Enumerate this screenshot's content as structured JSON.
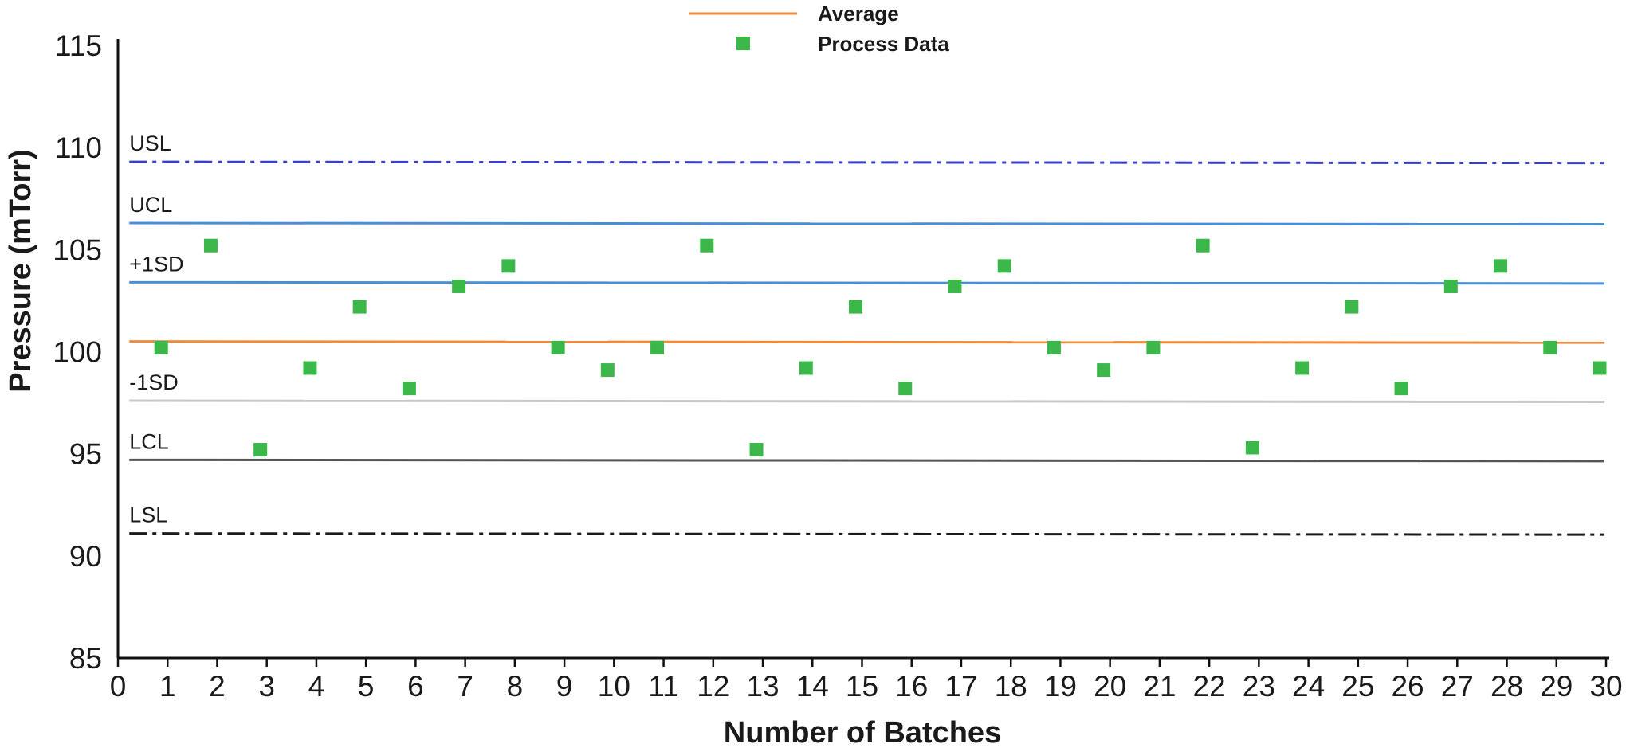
{
  "chart_data": {
    "type": "scatter",
    "title": "",
    "xlabel": "Number of Batches",
    "ylabel": "Pressure (mTorr)",
    "xlim": [
      0,
      30
    ],
    "ylim": [
      85,
      115
    ],
    "xticks": [
      0,
      1,
      2,
      3,
      4,
      5,
      6,
      7,
      8,
      9,
      10,
      11,
      12,
      13,
      14,
      15,
      16,
      17,
      18,
      19,
      20,
      21,
      22,
      23,
      24,
      25,
      26,
      27,
      28,
      29,
      30
    ],
    "yticks": [
      85,
      90,
      95,
      100,
      105,
      110,
      115
    ],
    "grid": false,
    "legend": {
      "position": "top-center",
      "entries": [
        {
          "label": "Average",
          "marker": "line",
          "color": "#f08a3c"
        },
        {
          "label": "Process Data",
          "marker": "square",
          "color": "#3cb84a"
        }
      ]
    },
    "series": [
      {
        "name": "Process Data",
        "color": "#3cb84a",
        "x": [
          1,
          2,
          3,
          4,
          5,
          6,
          7,
          8,
          9,
          10,
          11,
          12,
          13,
          14,
          15,
          16,
          17,
          18,
          19,
          20,
          21,
          22,
          23,
          24,
          25,
          26,
          27,
          28,
          29,
          30
        ],
        "y": [
          100.2,
          105.2,
          95.2,
          99.2,
          102.2,
          98.2,
          103.2,
          104.2,
          100.2,
          99.1,
          100.2,
          105.2,
          95.2,
          99.2,
          102.2,
          98.2,
          103.2,
          104.2,
          100.2,
          99.1,
          100.2,
          105.2,
          95.3,
          99.2,
          102.2,
          98.2,
          103.2,
          104.2,
          100.2,
          99.2
        ]
      }
    ],
    "reference_lines": [
      {
        "label": "USL",
        "value": 109.3,
        "color": "#3a3fc4",
        "style": "dashdot"
      },
      {
        "label": "UCL",
        "value": 106.3,
        "color": "#4a8fd4",
        "style": "solid"
      },
      {
        "label": "+1SD",
        "value": 103.4,
        "color": "#4a8fd4",
        "style": "solid"
      },
      {
        "label": "",
        "value": 100.5,
        "color": "#f08a3c",
        "style": "solid"
      },
      {
        "label": "-1SD",
        "value": 97.6,
        "color": "#c8c8c8",
        "style": "solid"
      },
      {
        "label": "LCL",
        "value": 94.7,
        "color": "#555555",
        "style": "solid"
      },
      {
        "label": "LSL",
        "value": 91.1,
        "color": "#1a1a1a",
        "style": "dashdot"
      }
    ]
  }
}
